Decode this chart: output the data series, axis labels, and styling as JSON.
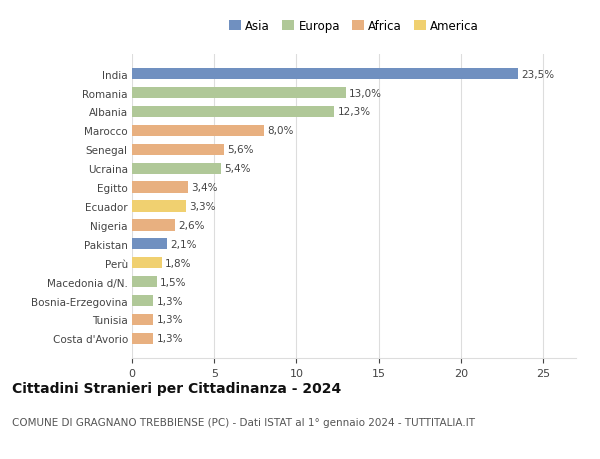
{
  "countries": [
    "India",
    "Romania",
    "Albania",
    "Marocco",
    "Senegal",
    "Ucraina",
    "Egitto",
    "Ecuador",
    "Nigeria",
    "Pakistan",
    "Perù",
    "Macedonia d/N.",
    "Bosnia-Erzegovina",
    "Tunisia",
    "Costa d'Avorio"
  ],
  "values": [
    23.5,
    13.0,
    12.3,
    8.0,
    5.6,
    5.4,
    3.4,
    3.3,
    2.6,
    2.1,
    1.8,
    1.5,
    1.3,
    1.3,
    1.3
  ],
  "labels": [
    "23,5%",
    "13,0%",
    "12,3%",
    "8,0%",
    "5,6%",
    "5,4%",
    "3,4%",
    "3,3%",
    "2,6%",
    "2,1%",
    "1,8%",
    "1,5%",
    "1,3%",
    "1,3%",
    "1,3%"
  ],
  "continents": [
    "Asia",
    "Europa",
    "Europa",
    "Africa",
    "Africa",
    "Europa",
    "Africa",
    "America",
    "Africa",
    "Asia",
    "America",
    "Europa",
    "Europa",
    "Africa",
    "Africa"
  ],
  "continent_colors": {
    "Asia": "#7090c0",
    "Europa": "#b0c898",
    "Africa": "#e8b080",
    "America": "#f0d070"
  },
  "legend_order": [
    "Asia",
    "Europa",
    "Africa",
    "America"
  ],
  "title": "Cittadini Stranieri per Cittadinanza - 2024",
  "subtitle": "COMUNE DI GRAGNANO TREBBIENSE (PC) - Dati ISTAT al 1° gennaio 2024 - TUTTITALIA.IT",
  "xlim": [
    0,
    27
  ],
  "background_color": "#ffffff",
  "grid_color": "#dddddd",
  "bar_height": 0.6,
  "label_fontsize": 7.5,
  "title_fontsize": 10,
  "subtitle_fontsize": 7.5,
  "ytick_fontsize": 7.5,
  "xtick_fontsize": 8,
  "legend_fontsize": 8.5
}
